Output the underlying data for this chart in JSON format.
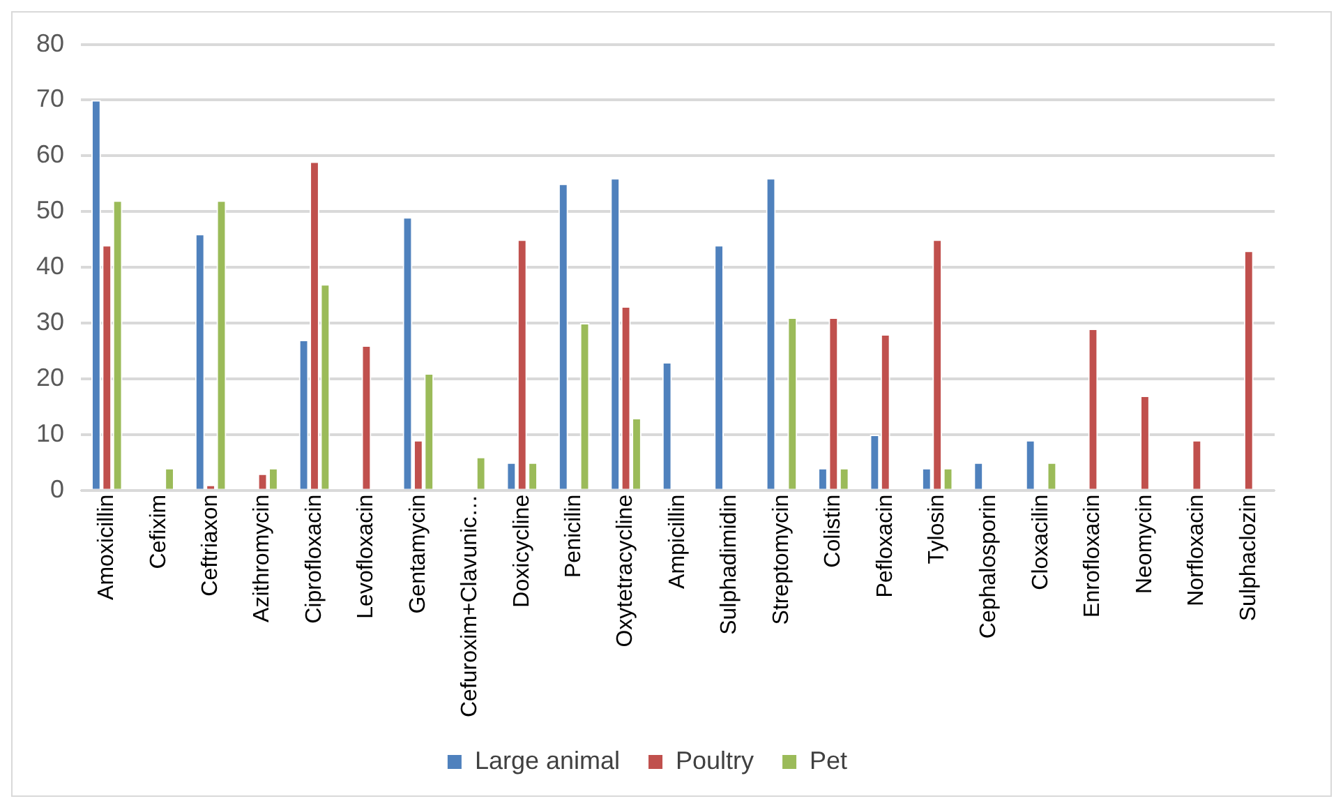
{
  "chart_data": {
    "type": "bar",
    "categories": [
      "Amoxicillin",
      "Cefixim",
      "Ceftriaxon",
      "Azithromycin",
      "Ciprofloxacin",
      "Levofloxacin",
      "Gentamycin",
      "Cefuroxim+Clavunic…",
      "Doxicycline",
      "Penicilin",
      "Oxytetracycline",
      "Ampicillin",
      "Sulphadimidin",
      "Streptomycin",
      "Colistin",
      "Pefloxacin",
      "Tylosin",
      "Cephalosporin",
      "Cloxacilin",
      "Enrofloxacin",
      "Neomycin",
      "Norfloxacin",
      "Sulphaclozin"
    ],
    "series": [
      {
        "name": "Large animal",
        "color": "#4f81bd",
        "values": [
          70,
          null,
          46,
          null,
          27,
          null,
          49,
          null,
          5,
          55,
          56,
          23,
          44,
          56,
          4,
          10,
          4,
          5,
          9,
          null,
          null,
          null,
          null
        ]
      },
      {
        "name": "Poultry",
        "color": "#c0504d",
        "values": [
          44,
          null,
          1,
          3,
          59,
          26,
          9,
          null,
          45,
          null,
          33,
          null,
          null,
          null,
          31,
          28,
          45,
          null,
          null,
          29,
          17,
          9,
          43
        ]
      },
      {
        "name": "Pet",
        "color": "#9bbb59",
        "values": [
          52,
          4,
          52,
          4,
          37,
          null,
          21,
          6,
          5,
          30,
          13,
          null,
          null,
          31,
          4,
          null,
          4,
          null,
          5,
          null,
          null,
          null,
          null
        ]
      }
    ],
    "ylim": [
      0,
      80
    ],
    "yticks": [
      0,
      10,
      20,
      30,
      40,
      50,
      60,
      70,
      80
    ],
    "grid": "y",
    "legend": "bottom"
  }
}
